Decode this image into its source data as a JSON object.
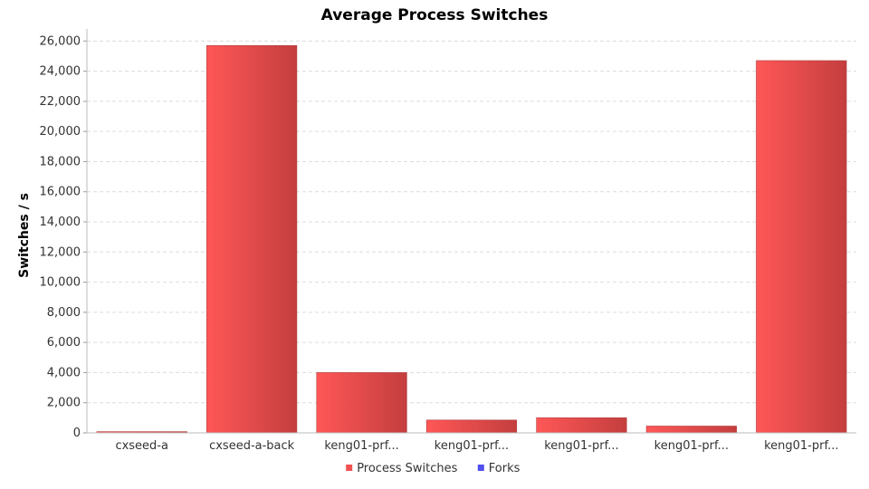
{
  "chart_data": {
    "type": "bar",
    "title": "Average Process Switches",
    "xlabel": "",
    "ylabel": "Switches / s",
    "categories": [
      "cxseed-a",
      "cxseed-a-back",
      "keng01-prf...",
      "keng01-prf...",
      "keng01-prf...",
      "keng01-prf...",
      "keng01-prf..."
    ],
    "series": [
      {
        "name": "Process Switches",
        "color": "#f05050",
        "values": [
          80,
          25700,
          4000,
          850,
          1000,
          450,
          24700
        ]
      },
      {
        "name": "Forks",
        "color": "#5050f0",
        "values": [
          0,
          0,
          0,
          0,
          0,
          0,
          0
        ]
      }
    ],
    "ylim": [
      0,
      26800
    ],
    "yticks": [
      0,
      2000,
      4000,
      6000,
      8000,
      10000,
      12000,
      14000,
      16000,
      18000,
      20000,
      22000,
      24000,
      26000
    ],
    "ytick_labels": [
      "0",
      "2,000",
      "4,000",
      "6,000",
      "8,000",
      "10,000",
      "12,000",
      "14,000",
      "16,000",
      "18,000",
      "20,000",
      "22,000",
      "24,000",
      "26,000"
    ],
    "grid": true,
    "legend_position": "bottom"
  }
}
